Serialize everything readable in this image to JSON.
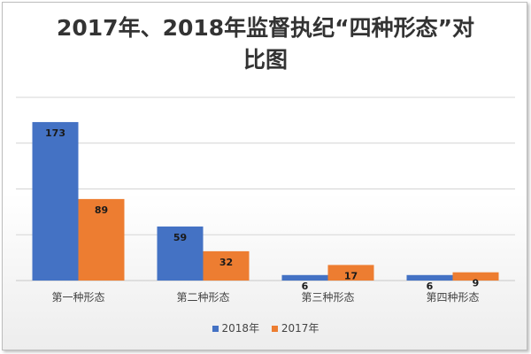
{
  "chart_data": {
    "type": "bar",
    "title": "2017年、2018年监督执纪“四种形态”对比图",
    "categories": [
      "第一种形态",
      "第二种形态",
      "第三种形态",
      "第四种形态"
    ],
    "series": [
      {
        "name": "2018年",
        "color": "#4472C4",
        "values": [
          173,
          59,
          6,
          6
        ]
      },
      {
        "name": "2017年",
        "color": "#ED7D31",
        "values": [
          89,
          32,
          17,
          9
        ]
      }
    ],
    "ylim": [
      0,
      200
    ],
    "y_gridlines": [
      0,
      50,
      100,
      150,
      200
    ],
    "grid": true,
    "legend_position": "bottom"
  }
}
